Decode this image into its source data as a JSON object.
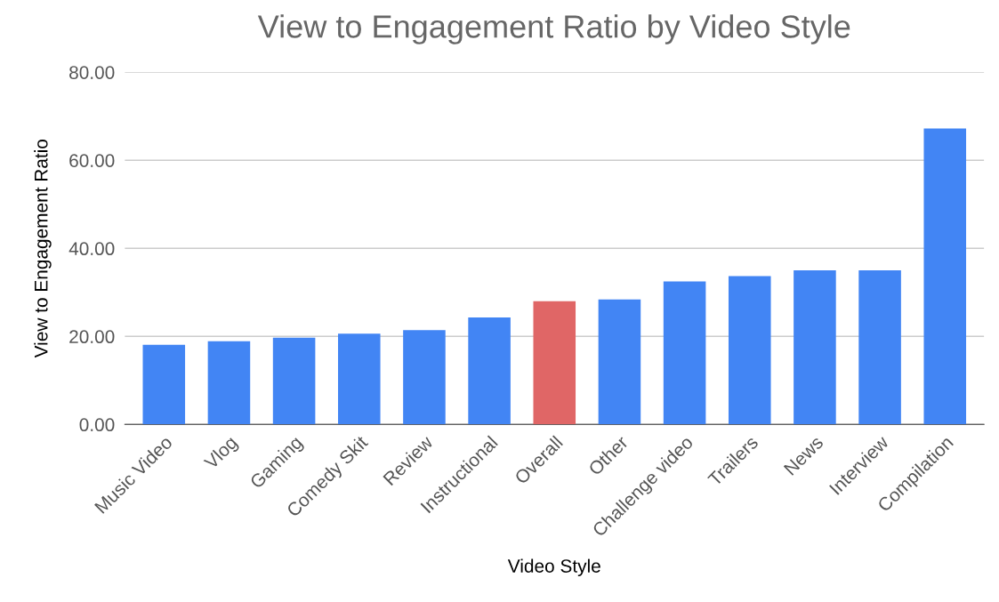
{
  "chart_data": {
    "type": "bar",
    "title": "View to Engagement Ratio by Video Style",
    "xlabel": "Video Style",
    "ylabel": "View to Engagement Ratio",
    "categories": [
      "Music Video",
      "Vlog",
      "Gaming",
      "Comedy Skit",
      "Review",
      "Instructional",
      "Overall",
      "Other",
      "Challenge video",
      "Trailers",
      "News",
      "Interview",
      "Compilation"
    ],
    "values": [
      18.1,
      18.9,
      19.7,
      20.6,
      21.4,
      24.3,
      28.0,
      28.4,
      32.5,
      33.7,
      35.0,
      35.0,
      67.2
    ],
    "colors": [
      "#4285f4",
      "#4285f4",
      "#4285f4",
      "#4285f4",
      "#4285f4",
      "#4285f4",
      "#e06666",
      "#4285f4",
      "#4285f4",
      "#4285f4",
      "#4285f4",
      "#4285f4",
      "#4285f4"
    ],
    "ylim": [
      0,
      80
    ],
    "yticks": [
      {
        "value": 0,
        "label": "0.00"
      },
      {
        "value": 20,
        "label": "20.00"
      },
      {
        "value": 40,
        "label": "40.00"
      },
      {
        "value": 60,
        "label": "60.00"
      },
      {
        "value": 80,
        "label": "80.00"
      }
    ],
    "grid": "y"
  }
}
